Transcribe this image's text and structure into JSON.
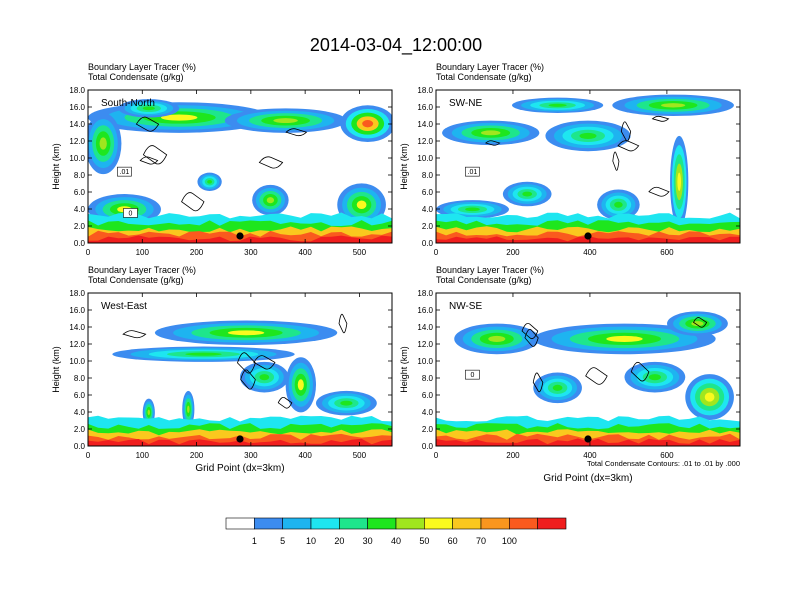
{
  "title": "2014-03-04_12:00:00",
  "panels": [
    {
      "id": "south-north",
      "line1": "Boundary Layer Tracer   (%)",
      "line2": "Total Condensate   (g/kg)",
      "label": "South-North",
      "ylabel": "Height (km)",
      "yticks": [
        "0.0",
        "2.0",
        "4.0",
        "6.0",
        "8.0",
        "10.0",
        "12.0",
        "14.0",
        "16.0",
        "18.0"
      ],
      "xticks": [
        "0",
        "100",
        "200",
        "300",
        "400",
        "500"
      ],
      "xmax": 560,
      "xlabel": "",
      "note": "",
      "contour_labels": [
        ".01",
        "0"
      ],
      "marker_x": 280
    },
    {
      "id": "sw-ne",
      "line1": "Boundary Layer Tracer   (%)",
      "line2": "Total Condensate   (g/kg)",
      "label": "SW-NE",
      "ylabel": "Height (km)",
      "yticks": [
        "0.0",
        "2.0",
        "4.0",
        "6.0",
        "8.0",
        "10.0",
        "12.0",
        "14.0",
        "16.0",
        "18.0"
      ],
      "xticks": [
        "0",
        "200",
        "400",
        "600"
      ],
      "xmax": 790,
      "xlabel": "",
      "note": "",
      "contour_labels": [
        ".01"
      ],
      "marker_x": 395
    },
    {
      "id": "west-east",
      "line1": "Boundary Layer Tracer   (%)",
      "line2": "Total Condensate   (g/kg)",
      "label": "West-East",
      "ylabel": "Height (km)",
      "yticks": [
        "0.0",
        "2.0",
        "4.0",
        "6.0",
        "8.0",
        "10.0",
        "12.0",
        "14.0",
        "16.0",
        "18.0"
      ],
      "xticks": [
        "0",
        "100",
        "200",
        "300",
        "400",
        "500"
      ],
      "xmax": 560,
      "xlabel": "Grid Point (dx=3km)",
      "note": "",
      "contour_labels": [],
      "marker_x": 280
    },
    {
      "id": "nw-se",
      "line1": "Boundary Layer Tracer   (%)",
      "line2": "Total Condensate   (g/kg)",
      "label": "NW-SE",
      "ylabel": "Height (km)",
      "yticks": [
        "0.0",
        "2.0",
        "4.0",
        "6.0",
        "8.0",
        "10.0",
        "12.0",
        "14.0",
        "16.0",
        "18.0"
      ],
      "xticks": [
        "0",
        "200",
        "400",
        "600"
      ],
      "xmax": 790,
      "xlabel": "Grid Point (dx=3km)",
      "note": "Total Condensate Contours: .01 to .01 by .000",
      "contour_labels": [
        "0"
      ],
      "marker_x": 395
    }
  ],
  "colorbar": {
    "labels": [
      "1",
      "5",
      "10",
      "20",
      "30",
      "40",
      "50",
      "60",
      "70",
      "100"
    ],
    "colors": [
      "#ffffff",
      "#3c8cf0",
      "#1eb4f0",
      "#1ee6f0",
      "#1ee68c",
      "#1ee61e",
      "#a0e61e",
      "#fafa1e",
      "#fac81e",
      "#fa961e",
      "#fa5a1e",
      "#f01e1e"
    ]
  },
  "chart_data": [
    {
      "type": "heatmap",
      "title": "South-North",
      "variables": [
        "Boundary Layer Tracer (%)",
        "Total Condensate (g/kg)"
      ],
      "x_range": [
        0,
        560
      ],
      "y_range_km": [
        0.0,
        18.0
      ],
      "ylabel": "Height (km)",
      "xlabel": "",
      "levels_percent": [
        1,
        5,
        10,
        20,
        30,
        40,
        50,
        60,
        70,
        100
      ]
    },
    {
      "type": "heatmap",
      "title": "SW-NE",
      "variables": [
        "Boundary Layer Tracer (%)",
        "Total Condensate (g/kg)"
      ],
      "x_range": [
        0,
        790
      ],
      "y_range_km": [
        0.0,
        18.0
      ],
      "ylabel": "Height (km)",
      "xlabel": "",
      "levels_percent": [
        1,
        5,
        10,
        20,
        30,
        40,
        50,
        60,
        70,
        100
      ]
    },
    {
      "type": "heatmap",
      "title": "West-East",
      "variables": [
        "Boundary Layer Tracer (%)",
        "Total Condensate (g/kg)"
      ],
      "x_range": [
        0,
        560
      ],
      "y_range_km": [
        0.0,
        18.0
      ],
      "ylabel": "Height (km)",
      "xlabel": "Grid Point (dx=3km)",
      "levels_percent": [
        1,
        5,
        10,
        20,
        30,
        40,
        50,
        60,
        70,
        100
      ]
    },
    {
      "type": "heatmap",
      "title": "NW-SE",
      "variables": [
        "Boundary Layer Tracer (%)",
        "Total Condensate (g/kg)"
      ],
      "x_range": [
        0,
        790
      ],
      "y_range_km": [
        0.0,
        18.0
      ],
      "ylabel": "Height (km)",
      "xlabel": "Grid Point (dx=3km)",
      "levels_percent": [
        1,
        5,
        10,
        20,
        30,
        40,
        50,
        60,
        70,
        100
      ]
    }
  ]
}
